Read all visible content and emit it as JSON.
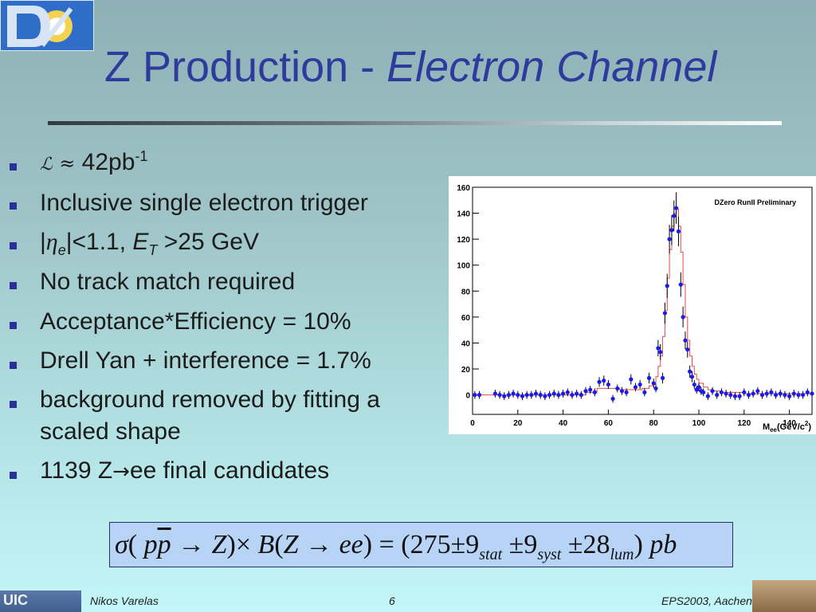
{
  "slide": {
    "title_main": "Z Production - ",
    "title_italic": "Electron Channel",
    "bullets": [
      {
        "lum_symbol": "ℒ",
        "approx": "≈",
        "value": "42pb",
        "sup": "-1"
      },
      {
        "text": "Inclusive single electron trigger"
      },
      {
        "pre": "|",
        "eta": "η",
        "sub_e": "e",
        "mid": "|<1.1, ",
        "et": "E",
        "sub_t": "T",
        "post": " >25 GeV"
      },
      {
        "text": "No track match required"
      },
      {
        "text": "Acceptance*Efficiency = 10%"
      },
      {
        "text": "Drell Yan + interference = 1.7%"
      },
      {
        "line1": "background removed by fitting a",
        "line2": "scaled shape"
      },
      {
        "pre": "1139 Z",
        "arrow": "→",
        "post": "ee final candidates"
      }
    ],
    "formula": {
      "sigma": "σ",
      "lhs": "( ",
      "p": "p",
      "pbar": "p",
      "arrow1": " → ",
      "z1": "Z",
      "times": ")× ",
      "b": "B",
      "open": "(",
      "z2": "Z",
      "arrow2": " → ",
      "ee": "ee",
      "eq": ") = (275",
      "pm1": "±9",
      "stat": "stat",
      "pm2": " ±9",
      "syst": "syst",
      "pm3": " ±28",
      "lum": "lum",
      "close": ") ",
      "pb": "pb"
    },
    "footer": {
      "author": "Nikos Varelas",
      "page": "6",
      "conference": "EPS2003, Aachen"
    },
    "logo_text": "DØ",
    "uic_text": "UIC"
  },
  "chart_data": {
    "type": "scatter",
    "title": "DZero RunII Preliminary",
    "xlabel": "M_ee(GeV/c^2)",
    "ylabel": "",
    "xlim": [
      0,
      150
    ],
    "ylim": [
      -15,
      160
    ],
    "x_ticks": [
      0,
      20,
      40,
      60,
      80,
      100,
      120,
      140
    ],
    "y_ticks": [
      0,
      20,
      40,
      60,
      80,
      100,
      120,
      140,
      160
    ],
    "series": [
      {
        "style": "points",
        "x": [
          1,
          3,
          10,
          12,
          14,
          16,
          18,
          20,
          22,
          24,
          26,
          28,
          30,
          32,
          34,
          36,
          38,
          40,
          42,
          44,
          46,
          48,
          50,
          52,
          54,
          56,
          58,
          60,
          62,
          64,
          66,
          68,
          70,
          72,
          74,
          76,
          78,
          80,
          81,
          82,
          83,
          84,
          85,
          86,
          87,
          88,
          89,
          90,
          91,
          92,
          93,
          94,
          95,
          96,
          97,
          98,
          99,
          100,
          101,
          102,
          104,
          106,
          108,
          110,
          112,
          114,
          116,
          118,
          120,
          122,
          124,
          126,
          128,
          130,
          132,
          134,
          136,
          138,
          140,
          142,
          144,
          146,
          148,
          150
        ],
        "y": [
          0,
          0,
          1,
          0,
          -1,
          0,
          1,
          0,
          -1,
          0,
          0,
          1,
          0,
          -1,
          0,
          1,
          0,
          1,
          2,
          0,
          1,
          0,
          3,
          4,
          2,
          10,
          11,
          8,
          -3,
          5,
          3,
          2,
          12,
          6,
          8,
          2,
          13,
          9,
          5,
          36,
          33,
          13,
          63,
          84,
          120,
          127,
          138,
          144,
          126,
          85,
          60,
          42,
          35,
          18,
          14,
          8,
          4,
          6,
          3,
          2,
          -1,
          3,
          0,
          2,
          1,
          0,
          -1,
          -1,
          2,
          0,
          1,
          3,
          0,
          1,
          2,
          0,
          1,
          0,
          -1,
          1,
          0,
          0,
          2,
          1
        ]
      },
      {
        "style": "histogram",
        "color": "#e84a4a",
        "x": [
          0,
          10,
          20,
          30,
          40,
          50,
          55,
          60,
          65,
          70,
          75,
          78,
          80,
          81,
          82,
          83,
          84,
          85,
          86,
          87,
          88,
          89,
          90,
          91,
          92,
          93,
          94,
          95,
          96,
          97,
          98,
          99,
          100,
          102,
          104,
          106,
          110,
          120,
          130,
          140,
          150
        ],
        "y": [
          0,
          0,
          0,
          0,
          0,
          2,
          5,
          5,
          4,
          4,
          5,
          7,
          8,
          14,
          22,
          30,
          45,
          65,
          90,
          112,
          130,
          140,
          143,
          130,
          110,
          85,
          60,
          42,
          30,
          22,
          16,
          12,
          9,
          6,
          4,
          3,
          2,
          1,
          1,
          1,
          1
        ]
      }
    ],
    "grid": false
  }
}
